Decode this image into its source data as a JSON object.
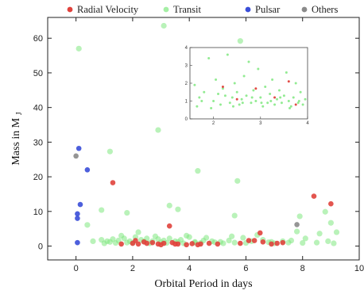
{
  "chart_data": {
    "type": "scatter",
    "title": "",
    "xlabel": "Orbital Period in days",
    "ylabel": "Mass in M",
    "ylabel_subscript": "J",
    "xlim": [
      -1,
      10
    ],
    "ylim": [
      -4,
      66
    ],
    "xticks": [
      0,
      2,
      4,
      6,
      8,
      10
    ],
    "yticks": [
      0,
      10,
      20,
      30,
      40,
      50,
      60
    ],
    "grid": false,
    "legend_position": "top",
    "series": [
      {
        "name": "Radial Velocity",
        "color": "#e0423c",
        "points": [
          [
            1.3,
            18.3
          ],
          [
            3.3,
            5.8
          ],
          [
            8.4,
            14.4
          ],
          [
            9.0,
            12.2
          ],
          [
            6.5,
            3.8
          ],
          [
            2.1,
            1.6
          ],
          [
            2.2,
            0.6
          ],
          [
            2.5,
            0.8
          ],
          [
            2.7,
            1.0
          ],
          [
            2.9,
            0.6
          ],
          [
            3.1,
            0.8
          ],
          [
            3.4,
            1.0
          ],
          [
            3.6,
            0.6
          ],
          [
            3.9,
            0.4
          ],
          [
            4.1,
            0.7
          ],
          [
            4.4,
            0.6
          ],
          [
            4.7,
            0.8
          ],
          [
            5.0,
            0.6
          ],
          [
            5.8,
            0.8
          ],
          [
            6.1,
            1.6
          ],
          [
            6.3,
            1.6
          ],
          [
            6.6,
            1.2
          ],
          [
            6.9,
            0.6
          ],
          [
            7.1,
            0.8
          ],
          [
            7.3,
            1.0
          ],
          [
            1.6,
            0.6
          ],
          [
            2.0,
            0.8
          ],
          [
            2.4,
            1.2
          ],
          [
            3.0,
            0.4
          ],
          [
            3.5,
            0.6
          ],
          [
            4.3,
            0.4
          ]
        ]
      },
      {
        "name": "Transit",
        "color": "#7fe87f",
        "points": [
          [
            0.1,
            57.0
          ],
          [
            3.1,
            63.6
          ],
          [
            5.8,
            59.2
          ],
          [
            2.9,
            33.5
          ],
          [
            1.2,
            27.3
          ],
          [
            4.3,
            21.7
          ],
          [
            5.7,
            18.8
          ],
          [
            0.9,
            10.4
          ],
          [
            1.8,
            9.6
          ],
          [
            3.3,
            11.7
          ],
          [
            3.6,
            10.6
          ],
          [
            5.6,
            8.8
          ],
          [
            7.9,
            8.6
          ],
          [
            8.8,
            9.9
          ],
          [
            9.0,
            6.7
          ],
          [
            0.4,
            6.1
          ],
          [
            0.6,
            1.4
          ],
          [
            0.9,
            1.8
          ],
          [
            1.1,
            1.4
          ],
          [
            1.3,
            2.0
          ],
          [
            1.5,
            1.6
          ],
          [
            1.7,
            2.2
          ],
          [
            1.9,
            1.4
          ],
          [
            2.1,
            2.6
          ],
          [
            2.3,
            1.8
          ],
          [
            2.5,
            2.2
          ],
          [
            2.7,
            1.4
          ],
          [
            2.9,
            2.0
          ],
          [
            3.1,
            1.6
          ],
          [
            3.3,
            2.2
          ],
          [
            3.5,
            1.4
          ],
          [
            3.7,
            1.8
          ],
          [
            3.9,
            3.0
          ],
          [
            4.2,
            1.2
          ],
          [
            4.5,
            1.6
          ],
          [
            4.8,
            1.4
          ],
          [
            5.1,
            1.2
          ],
          [
            5.4,
            1.6
          ],
          [
            5.9,
            2.4
          ],
          [
            6.2,
            1.4
          ],
          [
            6.6,
            1.8
          ],
          [
            6.9,
            1.2
          ],
          [
            7.3,
            1.4
          ],
          [
            7.6,
            1.6
          ],
          [
            8.1,
            2.2
          ],
          [
            8.5,
            1.0
          ],
          [
            8.9,
            1.4
          ],
          [
            9.2,
            4.0
          ],
          [
            1.0,
            0.8
          ],
          [
            1.4,
            0.9
          ],
          [
            2.0,
            0.9
          ],
          [
            2.6,
            0.8
          ],
          [
            3.2,
            0.9
          ],
          [
            3.8,
            0.8
          ],
          [
            4.4,
            0.9
          ],
          [
            5.2,
            0.8
          ],
          [
            6.0,
            0.9
          ],
          [
            7.0,
            0.8
          ],
          [
            8.0,
            0.9
          ],
          [
            9.1,
            0.8
          ],
          [
            1.6,
            3.0
          ],
          [
            2.2,
            4.0
          ],
          [
            2.8,
            2.8
          ],
          [
            4.0,
            2.6
          ],
          [
            4.6,
            2.4
          ],
          [
            5.5,
            2.8
          ],
          [
            6.4,
            3.2
          ],
          [
            7.8,
            4.2
          ],
          [
            8.6,
            3.6
          ],
          [
            1.2,
            1.2
          ],
          [
            1.8,
            1.0
          ],
          [
            2.4,
            1.3
          ],
          [
            3.0,
            1.1
          ],
          [
            3.6,
            1.2
          ],
          [
            4.2,
            1.0
          ],
          [
            4.9,
            1.1
          ],
          [
            5.6,
            1.0
          ],
          [
            6.8,
            1.1
          ],
          [
            7.5,
            1.0
          ]
        ]
      },
      {
        "name": "Pulsar",
        "color": "#3a4ed8",
        "points": [
          [
            0.1,
            28.2
          ],
          [
            0.4,
            22.0
          ],
          [
            0.15,
            12.0
          ],
          [
            0.05,
            9.3
          ],
          [
            0.05,
            8.0
          ],
          [
            0.05,
            1.0
          ]
        ]
      },
      {
        "name": "Others",
        "color": "#8a8a8a",
        "points": [
          [
            0.0,
            26.0
          ],
          [
            7.8,
            6.2
          ]
        ]
      }
    ],
    "inset": {
      "xlim": [
        1.5,
        4
      ],
      "ylim": [
        0,
        4
      ],
      "xticks": [
        "2",
        "3",
        "4"
      ],
      "yticks": [
        "0",
        "1",
        "2",
        "3",
        "4"
      ],
      "transit_points": [
        [
          1.6,
          1.9
        ],
        [
          1.7,
          1.2
        ],
        [
          1.8,
          1.5
        ],
        [
          1.9,
          3.4
        ],
        [
          2.0,
          1.0
        ],
        [
          2.05,
          2.2
        ],
        [
          2.1,
          1.4
        ],
        [
          2.2,
          1.7
        ],
        [
          2.3,
          3.6
        ],
        [
          2.35,
          0.9
        ],
        [
          2.4,
          1.2
        ],
        [
          2.45,
          2.0
        ],
        [
          2.5,
          1.5
        ],
        [
          2.55,
          0.8
        ],
        [
          2.6,
          1.1
        ],
        [
          2.65,
          2.4
        ],
        [
          2.7,
          1.3
        ],
        [
          2.75,
          3.2
        ],
        [
          2.8,
          0.9
        ],
        [
          2.85,
          1.6
        ],
        [
          2.9,
          1.0
        ],
        [
          2.95,
          2.8
        ],
        [
          3.0,
          1.2
        ],
        [
          3.05,
          0.7
        ],
        [
          3.1,
          1.8
        ],
        [
          3.15,
          0.9
        ],
        [
          3.2,
          1.4
        ],
        [
          3.25,
          2.2
        ],
        [
          3.3,
          0.8
        ],
        [
          3.35,
          1.1
        ],
        [
          3.4,
          1.6
        ],
        [
          3.45,
          0.9
        ],
        [
          3.5,
          1.3
        ],
        [
          3.55,
          2.6
        ],
        [
          3.6,
          1.0
        ],
        [
          3.65,
          0.7
        ],
        [
          3.7,
          1.2
        ],
        [
          3.75,
          2.0
        ],
        [
          3.8,
          0.9
        ],
        [
          3.85,
          1.5
        ],
        [
          3.9,
          0.8
        ],
        [
          3.95,
          1.1
        ],
        [
          1.65,
          0.7
        ],
        [
          1.75,
          1.0
        ],
        [
          1.95,
          0.6
        ],
        [
          2.15,
          0.8
        ],
        [
          2.25,
          1.3
        ],
        [
          2.42,
          0.7
        ],
        [
          2.62,
          0.9
        ],
        [
          2.82,
          1.2
        ],
        [
          3.02,
          0.9
        ],
        [
          3.22,
          1.0
        ],
        [
          3.42,
          1.2
        ],
        [
          3.62,
          0.6
        ],
        [
          3.82,
          1.0
        ]
      ],
      "rv_points": [
        [
          2.2,
          1.8
        ],
        [
          2.5,
          1.1
        ],
        [
          2.9,
          1.7
        ],
        [
          3.3,
          1.2
        ],
        [
          3.6,
          2.1
        ],
        [
          3.75,
          0.8
        ]
      ]
    }
  }
}
